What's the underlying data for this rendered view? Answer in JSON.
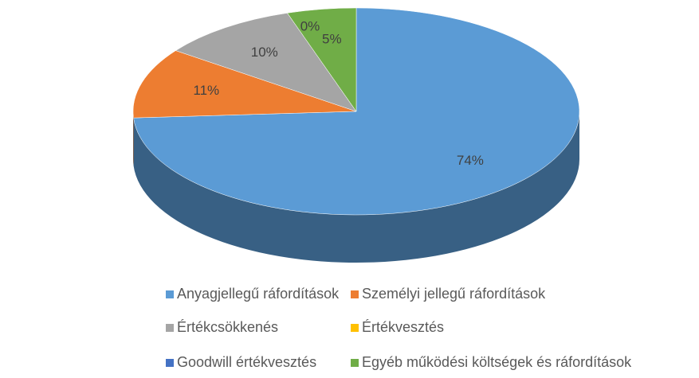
{
  "chart_data": {
    "type": "pie",
    "categories": [
      "Anyagjellegű ráfordítások",
      "Személyi jellegű ráfordítások",
      "Értékcsökkenés",
      "Értékvesztés",
      "Goodwill értékvesztés",
      "Egyéb működési költségek és ráfordítások"
    ],
    "values": [
      74,
      11,
      10,
      0,
      0,
      5
    ],
    "value_labels": [
      "74%",
      "11%",
      "10%",
      "0%",
      null,
      "5%"
    ],
    "colors": [
      "#5b9bd5",
      "#ed7d31",
      "#a5a5a5",
      "#ffc000",
      "#4472c4",
      "#70ad47"
    ],
    "legend": "bottom"
  }
}
